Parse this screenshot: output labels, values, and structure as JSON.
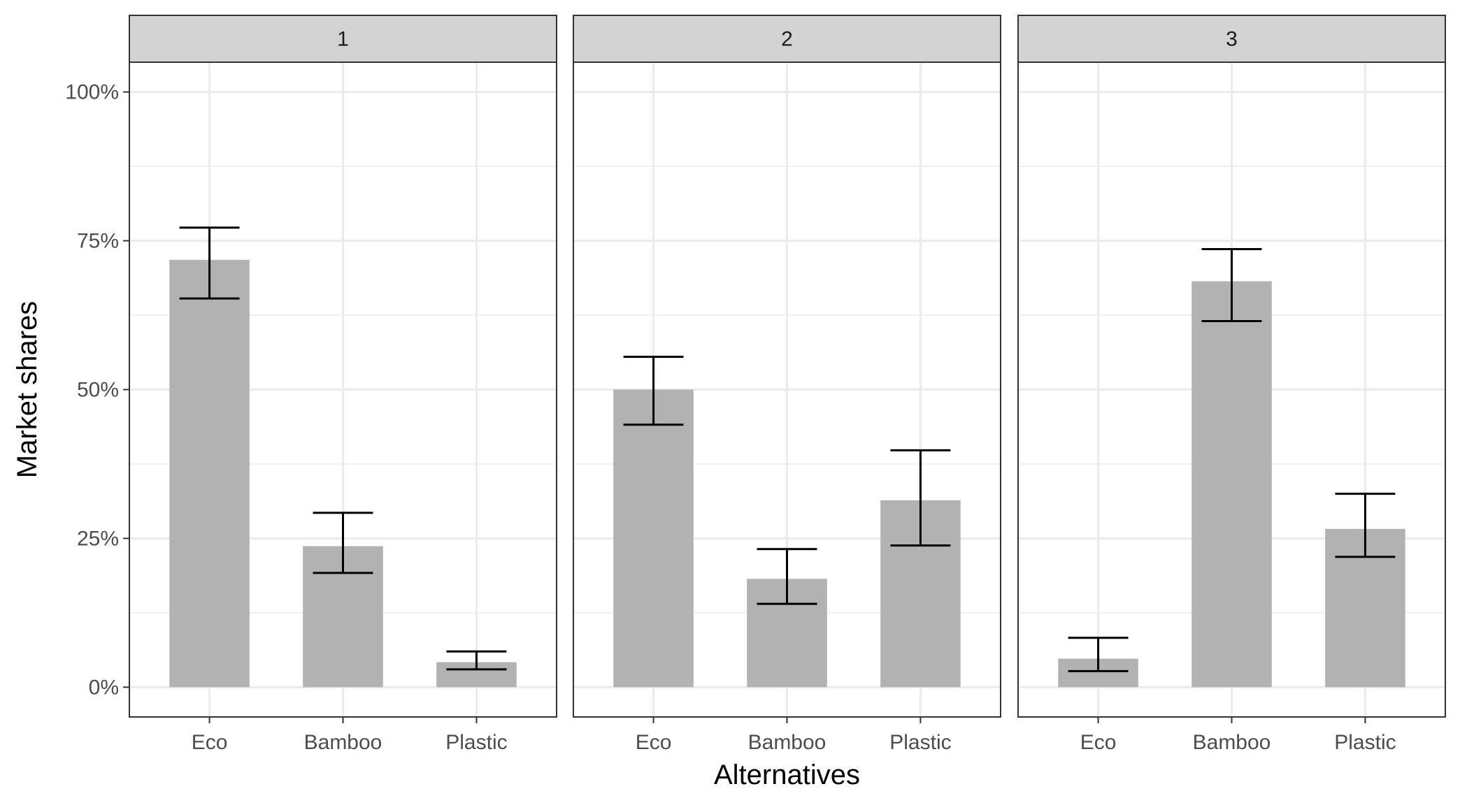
{
  "chart_data": {
    "type": "bar",
    "xlabel": "Alternatives",
    "ylabel": "Market shares",
    "ylim": [
      -0.05,
      1.05
    ],
    "y_ticks": [
      0,
      0.25,
      0.5,
      0.75,
      1.0
    ],
    "y_tick_labels": [
      "0%",
      "25%",
      "50%",
      "75%",
      "100%"
    ],
    "categories": [
      "Eco",
      "Bamboo",
      "Plastic"
    ],
    "grid": true,
    "colors": {
      "bar": "#b2b2b2",
      "error_bar": "#000000",
      "strip_fill": "#d3d3d3",
      "strip_border": "#333333",
      "grid": "#ebebeb",
      "panel_border": "#333333"
    },
    "panels": [
      {
        "label": "1",
        "values": [
          0.718,
          0.237,
          0.042
        ],
        "lower": [
          0.653,
          0.192,
          0.03
        ],
        "upper": [
          0.772,
          0.293,
          0.06
        ]
      },
      {
        "label": "2",
        "values": [
          0.5,
          0.182,
          0.314
        ],
        "lower": [
          0.441,
          0.14,
          0.238
        ],
        "upper": [
          0.555,
          0.232,
          0.398
        ]
      },
      {
        "label": "3",
        "values": [
          0.048,
          0.682,
          0.266
        ],
        "lower": [
          0.027,
          0.615,
          0.219
        ],
        "upper": [
          0.083,
          0.736,
          0.325
        ]
      }
    ]
  }
}
